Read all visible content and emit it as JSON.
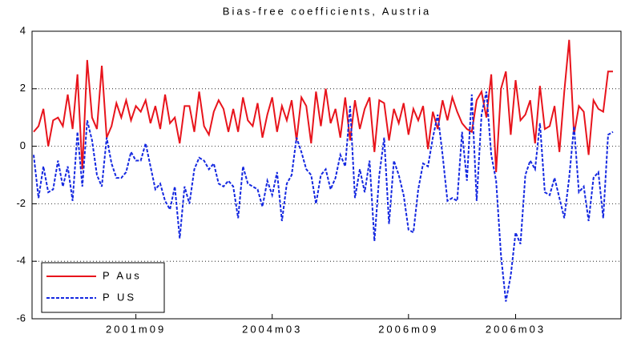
{
  "chart_data": {
    "type": "line",
    "title": "Bias-free coefficients, Austria",
    "categories": [
      null,
      null,
      null,
      null,
      null,
      null,
      null,
      null,
      null,
      null,
      null,
      null,
      null,
      null,
      null,
      null,
      null,
      null,
      null,
      null,
      null,
      "2001m09",
      null,
      null,
      null,
      null,
      null,
      null,
      null,
      null,
      null,
      null,
      null,
      null,
      null,
      null,
      null,
      null,
      null,
      null,
      null,
      null,
      null,
      null,
      null,
      null,
      null,
      null,
      null,
      "2004m03",
      null,
      null,
      null,
      null,
      null,
      null,
      null,
      null,
      null,
      null,
      null,
      null,
      null,
      null,
      null,
      null,
      null,
      null,
      null,
      null,
      null,
      null,
      null,
      null,
      null,
      null,
      null,
      "2006m09",
      null,
      null,
      null,
      null,
      null,
      null,
      null,
      null,
      null,
      null,
      null,
      null,
      null,
      null,
      null,
      null,
      null,
      null,
      null,
      null,
      null,
      "2006m03",
      null,
      null,
      null,
      null,
      null,
      null,
      null,
      null,
      null,
      null,
      null,
      null,
      null,
      null,
      null,
      null,
      null,
      null,
      null,
      null
    ],
    "series": [
      {
        "name": "P Aus",
        "color": "#e8141c",
        "dash": "solid",
        "values": [
          0.5,
          0.7,
          1.3,
          0,
          0.9,
          1.0,
          0.7,
          1.8,
          0.6,
          2.5,
          -0.8,
          3.0,
          1.0,
          0.6,
          2.8,
          0.3,
          0.7,
          1.5,
          1.0,
          1.6,
          0.9,
          1.4,
          1.2,
          1.6,
          0.8,
          1.4,
          0.6,
          1.8,
          0.8,
          1.0,
          0.1,
          1.4,
          1.4,
          0.5,
          1.9,
          0.7,
          0.4,
          1.2,
          1.6,
          1.3,
          0.5,
          1.3,
          0.5,
          1.7,
          0.9,
          0.7,
          1.5,
          0.3,
          1.1,
          1.7,
          0.5,
          1.4,
          0.9,
          1.6,
          0.2,
          1.7,
          1.4,
          0.1,
          1.9,
          0.7,
          2.0,
          0.8,
          1.3,
          0.3,
          1.7,
          0.2,
          1.6,
          0.6,
          1.3,
          1.7,
          -0.2,
          1.6,
          1.5,
          0.2,
          1.3,
          0.8,
          1.5,
          0.4,
          1.3,
          0.9,
          1.4,
          -0.1,
          1.2,
          0.6,
          1.6,
          0.9,
          1.7,
          1.2,
          0.8,
          0.6,
          0.5,
          1.6,
          1.9,
          1.0,
          2.5,
          -0.9,
          2.0,
          2.6,
          0.4,
          2.3,
          0.9,
          1.1,
          1.6,
          0.1,
          2.1,
          0.6,
          0.7,
          1.4,
          -0.2,
          1.9,
          3.7,
          0.4,
          1.4,
          1.2,
          -0.3,
          1.6,
          1.3,
          1.2,
          2.6,
          2.6
        ]
      },
      {
        "name": "P US",
        "color": "#1428e0",
        "dash": "dashed",
        "values": [
          -0.3,
          -1.8,
          -0.7,
          -1.6,
          -1.5,
          -0.5,
          -1.4,
          -0.7,
          -1.9,
          0.5,
          -1.4,
          0.9,
          0.2,
          -1.0,
          -1.4,
          0.3,
          -0.6,
          -1.1,
          -1.1,
          -0.9,
          -0.2,
          -0.5,
          -0.5,
          0.1,
          -0.7,
          -1.5,
          -1.3,
          -1.9,
          -2.2,
          -1.4,
          -3.2,
          -1.4,
          -2.0,
          -0.8,
          -0.4,
          -0.5,
          -0.8,
          -0.6,
          -1.3,
          -1.4,
          -1.2,
          -1.4,
          -2.5,
          -0.7,
          -1.3,
          -1.4,
          -1.5,
          -2.1,
          -1.2,
          -1.7,
          -0.9,
          -2.6,
          -1.3,
          -1.0,
          0.3,
          -0.2,
          -0.8,
          -1.0,
          -2.0,
          -1.0,
          -0.8,
          -1.5,
          -1.1,
          -0.3,
          -0.7,
          1.4,
          -1.8,
          -0.8,
          -1.6,
          -0.5,
          -3.3,
          -1.0,
          0.3,
          -2.7,
          -0.5,
          -1.0,
          -1.7,
          -2.9,
          -3.0,
          -1.5,
          -0.6,
          -0.7,
          0.3,
          1.1,
          -0.3,
          -1.9,
          -1.8,
          -1.9,
          0.5,
          -1.2,
          1.8,
          -1.9,
          1.1,
          1.9,
          -0.3,
          -1.2,
          -3.8,
          -5.4,
          -4.5,
          -3.0,
          -3.4,
          -1.0,
          -0.5,
          -0.8,
          0.8,
          -1.6,
          -1.7,
          -1.1,
          -1.8,
          -2.5,
          -1.1,
          0.7,
          -1.6,
          -1.4,
          -2.6,
          -1.1,
          -0.9,
          -2.5,
          0.4,
          0.5
        ]
      }
    ],
    "ylim": [
      -6,
      4
    ],
    "yticks": [
      -6,
      -4,
      -2,
      0,
      2,
      4
    ],
    "grid": "y",
    "legend": "lower left"
  }
}
